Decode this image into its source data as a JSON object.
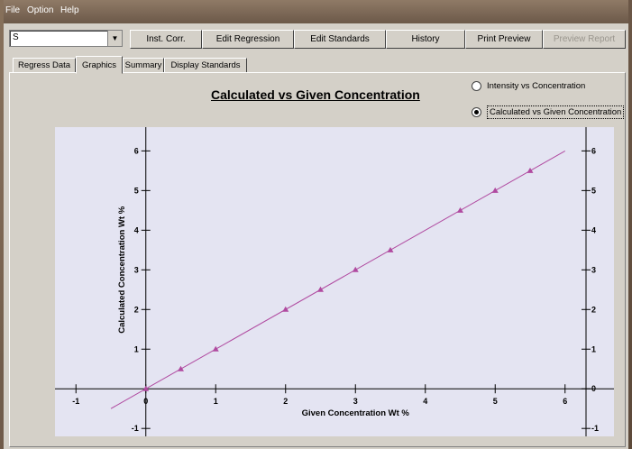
{
  "menu": {
    "file": "File",
    "option": "Option",
    "help": "Help"
  },
  "toolbar": {
    "element_value": "S",
    "buttons": {
      "inst_corr": "Inst. Corr.",
      "edit_regression": "Edit Regression",
      "edit_standards": "Edit Standards",
      "history": "History",
      "print_preview": "Print Preview",
      "preview_report": "Preview Report"
    }
  },
  "tabs": {
    "regress_data": "Regress Data",
    "graphics": "Graphics",
    "summary": "Summary",
    "display_standards": "Display Standards",
    "active": "Graphics"
  },
  "plot_options": {
    "intensity": "Intensity vs Concentration",
    "calculated": "Calculated vs Given Concentration",
    "selected": "calculated"
  },
  "colors": {
    "plot_bg": "#e4e4f2",
    "series": "#b04aa0",
    "axis": "#000000"
  },
  "chart_data": {
    "type": "scatter",
    "title": "Calculated vs Given Concentration",
    "xlabel": "Given Concentration Wt %",
    "ylabel": "Calculated Concentration Wt %",
    "xlim": [
      -1.3,
      6.7
    ],
    "ylim": [
      -1.2,
      6.6
    ],
    "xticks": [
      -1,
      0,
      1,
      2,
      3,
      4,
      5,
      6
    ],
    "yticks": [
      -1,
      0,
      1,
      2,
      3,
      4,
      5,
      6
    ],
    "grid": false,
    "series": [
      {
        "marker": "triangle",
        "x": [
          0,
          0.5,
          1,
          2,
          2.5,
          3,
          3.5,
          4.5,
          5,
          5.5
        ],
        "y": [
          0,
          0.5,
          1,
          2,
          2.5,
          3,
          3.5,
          4.5,
          5,
          5.5
        ]
      }
    ],
    "fit_line": {
      "slope": 1,
      "intercept": 0,
      "x_range": [
        -0.5,
        6
      ]
    }
  }
}
